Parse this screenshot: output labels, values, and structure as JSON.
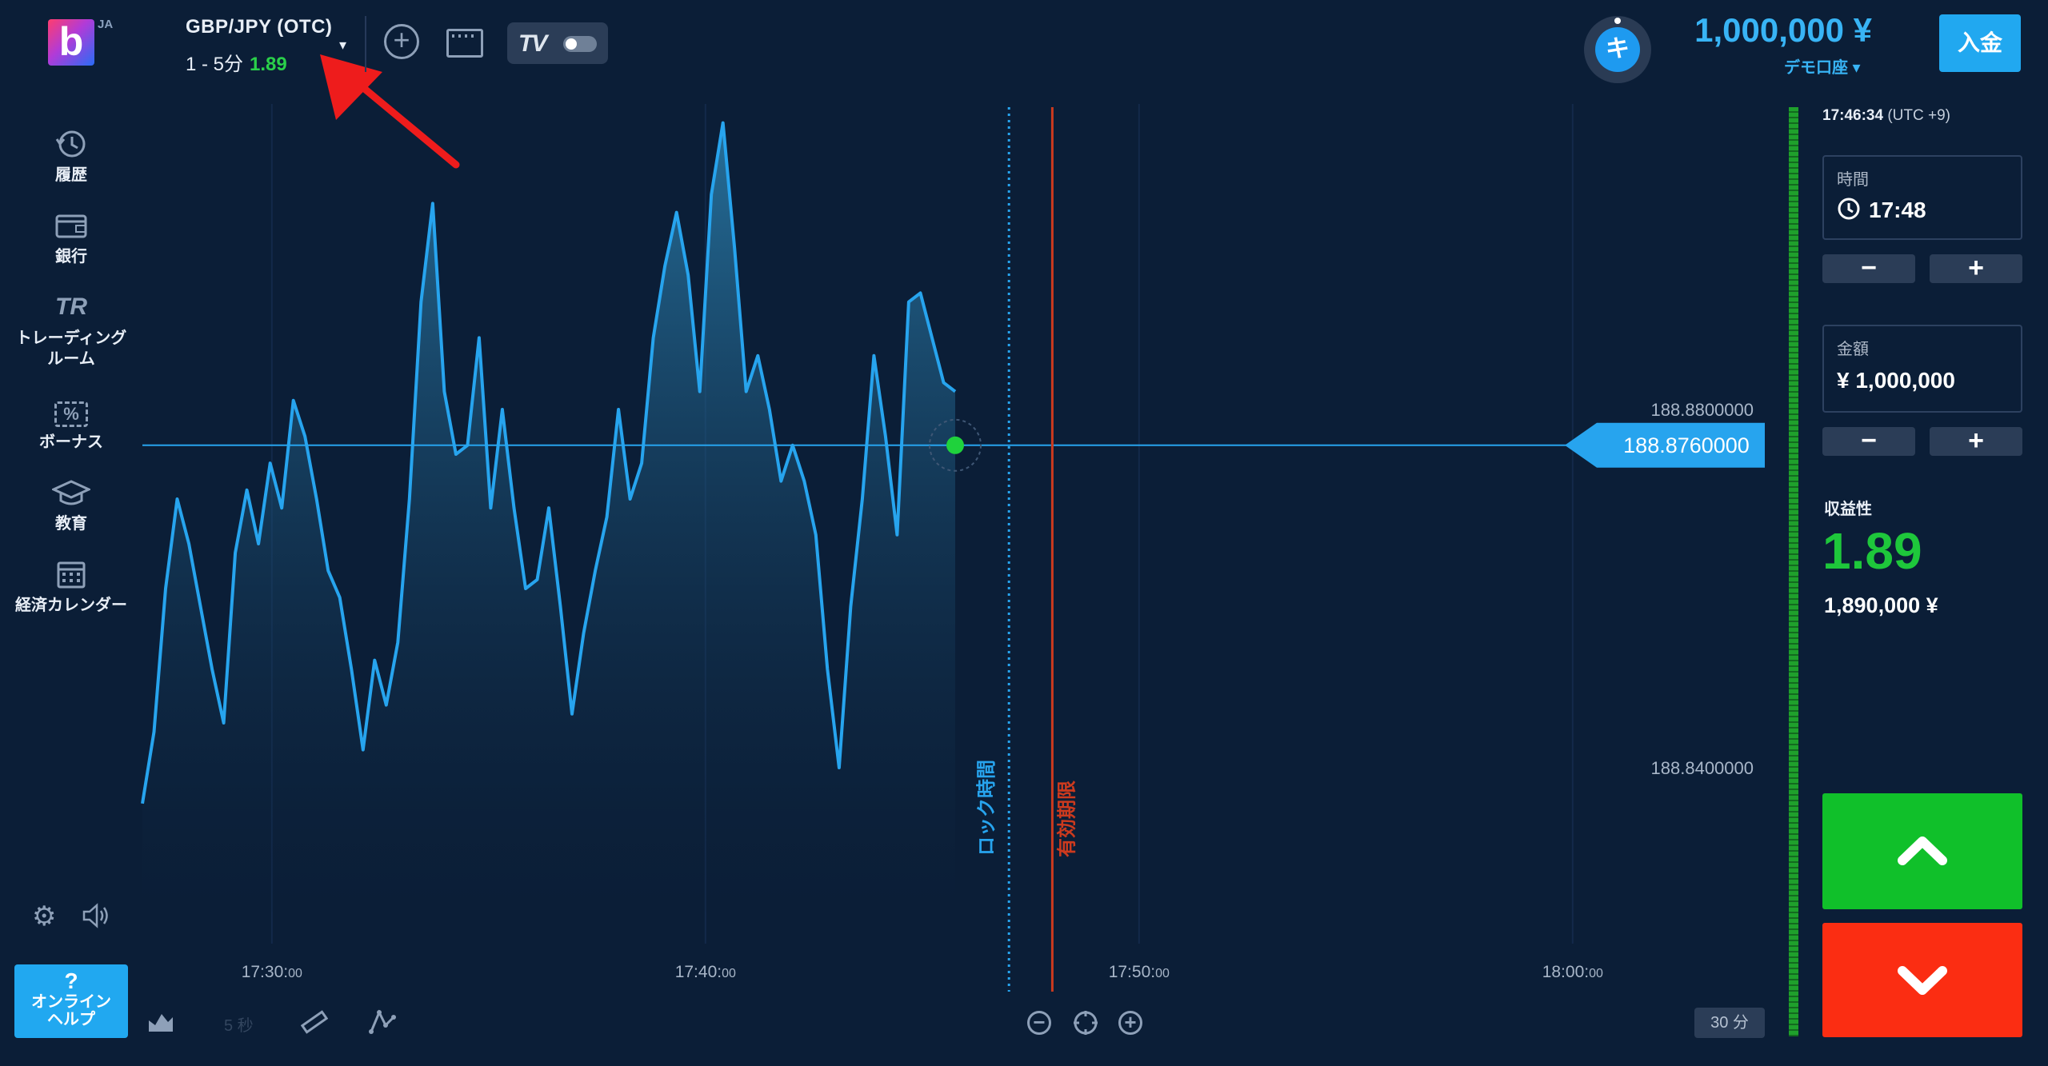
{
  "header": {
    "lang": "JA",
    "asset_name": "GBP/JPY (OTC)",
    "asset_duration": "1 - 5分",
    "asset_payout": "1.89",
    "balance": "1,000,000 ¥",
    "account_type": "デモ口座",
    "tour_label": "キ",
    "deposit_label": "入金"
  },
  "sidebar": {
    "items": [
      {
        "label": "履歴",
        "icon": "history-icon"
      },
      {
        "label": "銀行",
        "icon": "wallet-icon"
      },
      {
        "label": "トレーディング",
        "label2": "ルーム",
        "icon": "trading-room-icon",
        "glyph": "TR"
      },
      {
        "label": "ボーナス",
        "icon": "bonus-icon",
        "glyph": "%"
      },
      {
        "label": "教育",
        "icon": "graduation-cap-icon"
      },
      {
        "label": "経済カレンダー",
        "icon": "calendar-icon"
      }
    ],
    "help_q": "?",
    "help_line1": "オンライン",
    "help_line2": "ヘルプ"
  },
  "chart": {
    "price_labels": [
      "188.8800000",
      "188.8400000"
    ],
    "current_price": "188.8760000",
    "time_labels": [
      {
        "hm": "17:30:",
        "s": "00"
      },
      {
        "hm": "17:40:",
        "s": "00"
      },
      {
        "hm": "17:50:",
        "s": "00"
      },
      {
        "hm": "18:00:",
        "s": "00"
      }
    ],
    "lock_label": "ロック時間",
    "expiry_label": "有効期限",
    "accent": "#27a4ee",
    "expiry_color": "#cc3a1e",
    "current_dot_color": "#1fd23c"
  },
  "chart_data": {
    "type": "area",
    "series": [
      {
        "values": [
          188.836,
          188.844,
          188.86,
          188.87,
          188.865,
          188.858,
          188.851,
          188.845,
          188.864,
          188.871,
          188.865,
          188.874,
          188.869,
          188.881,
          188.877,
          188.87,
          188.862,
          188.859,
          188.851,
          188.842,
          188.852,
          188.847,
          188.854,
          188.87,
          188.892,
          188.903,
          188.882,
          188.875,
          188.876,
          188.888,
          188.869,
          188.88,
          188.869,
          188.86,
          188.861,
          188.869,
          188.858,
          188.846,
          188.855,
          188.862,
          188.868,
          188.88,
          188.87,
          188.874,
          188.888,
          188.896,
          188.902,
          188.895,
          188.882,
          188.904,
          188.912,
          188.898,
          188.882,
          188.886,
          188.88,
          188.872,
          188.876,
          188.872,
          188.866,
          188.851,
          188.84,
          188.858,
          188.87,
          188.886,
          188.877,
          188.866,
          188.892,
          188.893,
          188.888,
          188.883,
          188.882
        ]
      }
    ],
    "x_range": [
      "17:26",
      "18:02"
    ],
    "x_ticks": [
      "17:30:00",
      "17:40:00",
      "17:50:00",
      "18:00:00"
    ],
    "y_ticks": [
      188.88,
      188.84
    ],
    "current_price": 188.876,
    "lock_time": "17:47",
    "expiry_time": "17:48",
    "grid": true
  },
  "toolbar": {
    "resolution": "5 秒",
    "scale": "30 分"
  },
  "panel": {
    "clock_time": "17:46:34",
    "clock_tz": "(UTC +9)",
    "time_label": "時間",
    "time_value": "17:48",
    "amount_label": "金額",
    "amount_value": "¥ 1,000,000",
    "minus": "−",
    "plus": "+",
    "profit_label": "収益性",
    "profit_value": "1.89",
    "profit_amount": "1,890,000 ¥",
    "call_color": "#10c02a",
    "put_color": "#fb2d12"
  }
}
